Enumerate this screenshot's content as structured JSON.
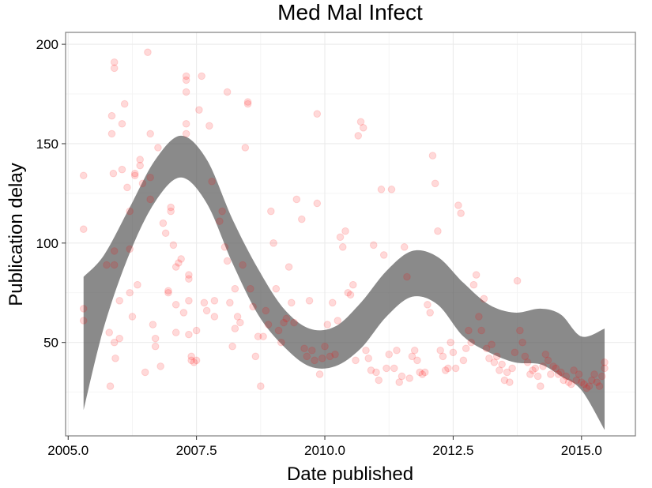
{
  "chart_data": {
    "type": "scatter",
    "title": "Med Mal Infect",
    "xlabel": "Date published",
    "ylabel": "Publication delay",
    "xlim": [
      2004.95,
      2016.05
    ],
    "ylim": [
      3,
      206
    ],
    "x_ticks": [
      {
        "value": 2005.0,
        "label": "2005.0"
      },
      {
        "value": 2007.5,
        "label": "2007.5"
      },
      {
        "value": 2010.0,
        "label": "2010.0"
      },
      {
        "value": 2012.5,
        "label": "2012.5"
      },
      {
        "value": 2015.0,
        "label": "2015.0"
      }
    ],
    "y_ticks": [
      {
        "value": 50,
        "label": "50"
      },
      {
        "value": 100,
        "label": "100"
      },
      {
        "value": 150,
        "label": "150"
      },
      {
        "value": 200,
        "label": "200"
      }
    ],
    "grid": true,
    "legend": "none",
    "point_color": "#ff0000",
    "point_opacity": 0.15,
    "band_color": "#595959",
    "band_opacity": 0.7,
    "points": [
      [
        2005.3,
        134
      ],
      [
        2005.3,
        107
      ],
      [
        2005.3,
        67
      ],
      [
        2005.3,
        61
      ],
      [
        2005.75,
        89
      ],
      [
        2005.8,
        55
      ],
      [
        2005.82,
        28
      ],
      [
        2005.85,
        164
      ],
      [
        2005.85,
        155
      ],
      [
        2005.88,
        135
      ],
      [
        2005.9,
        191
      ],
      [
        2005.9,
        188
      ],
      [
        2005.9,
        96
      ],
      [
        2005.9,
        89
      ],
      [
        2005.9,
        50
      ],
      [
        2005.92,
        42
      ],
      [
        2006.0,
        71
      ],
      [
        2006.0,
        52
      ],
      [
        2006.05,
        160
      ],
      [
        2006.05,
        137
      ],
      [
        2006.1,
        170
      ],
      [
        2006.15,
        128
      ],
      [
        2006.2,
        116
      ],
      [
        2006.2,
        97
      ],
      [
        2006.2,
        75
      ],
      [
        2006.25,
        63
      ],
      [
        2006.3,
        135
      ],
      [
        2006.3,
        134
      ],
      [
        2006.35,
        79
      ],
      [
        2006.4,
        142
      ],
      [
        2006.4,
        139
      ],
      [
        2006.45,
        130
      ],
      [
        2006.5,
        35
      ],
      [
        2006.55,
        196
      ],
      [
        2006.6,
        155
      ],
      [
        2006.6,
        133
      ],
      [
        2006.6,
        122
      ],
      [
        2006.65,
        59
      ],
      [
        2006.7,
        52
      ],
      [
        2006.7,
        48
      ],
      [
        2006.75,
        148
      ],
      [
        2006.8,
        38
      ],
      [
        2006.85,
        110
      ],
      [
        2006.9,
        105
      ],
      [
        2006.95,
        76
      ],
      [
        2006.95,
        75
      ],
      [
        2007.0,
        118
      ],
      [
        2007.0,
        116
      ],
      [
        2007.05,
        99
      ],
      [
        2007.1,
        88
      ],
      [
        2007.1,
        69
      ],
      [
        2007.1,
        55
      ],
      [
        2007.15,
        90
      ],
      [
        2007.2,
        92
      ],
      [
        2007.25,
        65
      ],
      [
        2007.3,
        184
      ],
      [
        2007.3,
        182
      ],
      [
        2007.3,
        176
      ],
      [
        2007.3,
        160
      ],
      [
        2007.3,
        155
      ],
      [
        2007.35,
        84
      ],
      [
        2007.35,
        82
      ],
      [
        2007.35,
        71
      ],
      [
        2007.35,
        54
      ],
      [
        2007.4,
        43
      ],
      [
        2007.4,
        41
      ],
      [
        2007.45,
        40
      ],
      [
        2007.5,
        56
      ],
      [
        2007.5,
        41
      ],
      [
        2007.55,
        167
      ],
      [
        2007.6,
        184
      ],
      [
        2007.65,
        70
      ],
      [
        2007.7,
        66
      ],
      [
        2007.75,
        159
      ],
      [
        2007.8,
        131
      ],
      [
        2007.85,
        71
      ],
      [
        2007.85,
        63
      ],
      [
        2007.95,
        111
      ],
      [
        2008.0,
        116
      ],
      [
        2008.05,
        98
      ],
      [
        2008.1,
        91
      ],
      [
        2008.1,
        176
      ],
      [
        2008.15,
        70
      ],
      [
        2008.2,
        48
      ],
      [
        2008.25,
        77
      ],
      [
        2008.25,
        57
      ],
      [
        2008.3,
        63
      ],
      [
        2008.35,
        60
      ],
      [
        2008.4,
        89
      ],
      [
        2008.45,
        148
      ],
      [
        2008.5,
        171
      ],
      [
        2008.5,
        170
      ],
      [
        2008.55,
        77
      ],
      [
        2008.6,
        68
      ],
      [
        2008.65,
        43
      ],
      [
        2008.7,
        53
      ],
      [
        2008.75,
        28
      ],
      [
        2008.8,
        53
      ],
      [
        2008.85,
        66
      ],
      [
        2008.9,
        59
      ],
      [
        2008.95,
        116
      ],
      [
        2009.0,
        100
      ],
      [
        2009.05,
        77
      ],
      [
        2009.1,
        56
      ],
      [
        2009.15,
        50
      ],
      [
        2009.2,
        60
      ],
      [
        2009.25,
        62
      ],
      [
        2009.3,
        88
      ],
      [
        2009.35,
        70
      ],
      [
        2009.4,
        60
      ],
      [
        2009.45,
        122
      ],
      [
        2009.55,
        112
      ],
      [
        2009.6,
        47
      ],
      [
        2009.65,
        43
      ],
      [
        2009.7,
        71
      ],
      [
        2009.75,
        46
      ],
      [
        2009.8,
        41
      ],
      [
        2009.85,
        165
      ],
      [
        2009.85,
        120
      ],
      [
        2009.9,
        34
      ],
      [
        2009.95,
        42
      ],
      [
        2010.0,
        48
      ],
      [
        2010.05,
        59
      ],
      [
        2010.1,
        43
      ],
      [
        2010.15,
        70
      ],
      [
        2010.2,
        44
      ],
      [
        2010.25,
        61
      ],
      [
        2010.3,
        103
      ],
      [
        2010.35,
        98
      ],
      [
        2010.4,
        106
      ],
      [
        2010.45,
        75
      ],
      [
        2010.5,
        74
      ],
      [
        2010.55,
        79
      ],
      [
        2010.6,
        41
      ],
      [
        2010.65,
        154
      ],
      [
        2010.7,
        161
      ],
      [
        2010.75,
        158
      ],
      [
        2010.8,
        46
      ],
      [
        2010.85,
        42
      ],
      [
        2010.9,
        36
      ],
      [
        2010.95,
        99
      ],
      [
        2011.0,
        35
      ],
      [
        2011.05,
        31
      ],
      [
        2011.1,
        127
      ],
      [
        2011.15,
        94
      ],
      [
        2011.2,
        37
      ],
      [
        2011.25,
        44
      ],
      [
        2011.3,
        127
      ],
      [
        2011.35,
        37
      ],
      [
        2011.4,
        46
      ],
      [
        2011.45,
        30
      ],
      [
        2011.5,
        33
      ],
      [
        2011.55,
        98
      ],
      [
        2011.6,
        83
      ],
      [
        2011.65,
        32
      ],
      [
        2011.7,
        43
      ],
      [
        2011.75,
        46
      ],
      [
        2011.8,
        41
      ],
      [
        2011.85,
        35
      ],
      [
        2011.9,
        34
      ],
      [
        2011.95,
        35
      ],
      [
        2012.0,
        69
      ],
      [
        2012.05,
        65
      ],
      [
        2012.1,
        144
      ],
      [
        2012.15,
        130
      ],
      [
        2012.2,
        106
      ],
      [
        2012.25,
        46
      ],
      [
        2012.3,
        43
      ],
      [
        2012.35,
        36
      ],
      [
        2012.4,
        37
      ],
      [
        2012.45,
        50
      ],
      [
        2012.5,
        45
      ],
      [
        2012.55,
        37
      ],
      [
        2012.6,
        119
      ],
      [
        2012.65,
        115
      ],
      [
        2012.7,
        41
      ],
      [
        2012.75,
        47
      ],
      [
        2012.8,
        56
      ],
      [
        2012.85,
        50
      ],
      [
        2012.9,
        79
      ],
      [
        2012.95,
        84
      ],
      [
        2013.0,
        63
      ],
      [
        2013.05,
        56
      ],
      [
        2013.1,
        72
      ],
      [
        2013.15,
        47
      ],
      [
        2013.2,
        42
      ],
      [
        2013.25,
        49
      ],
      [
        2013.3,
        40
      ],
      [
        2013.35,
        43
      ],
      [
        2013.4,
        36
      ],
      [
        2013.45,
        39
      ],
      [
        2013.5,
        31
      ],
      [
        2013.55,
        35
      ],
      [
        2013.6,
        30
      ],
      [
        2013.65,
        37
      ],
      [
        2013.7,
        45
      ],
      [
        2013.75,
        81
      ],
      [
        2013.8,
        56
      ],
      [
        2013.85,
        50
      ],
      [
        2013.9,
        43
      ],
      [
        2013.95,
        40
      ],
      [
        2014.0,
        34
      ],
      [
        2014.05,
        36
      ],
      [
        2014.1,
        37
      ],
      [
        2014.15,
        33
      ],
      [
        2014.2,
        28
      ],
      [
        2014.25,
        38
      ],
      [
        2014.3,
        44
      ],
      [
        2014.35,
        41
      ],
      [
        2014.4,
        34
      ],
      [
        2014.45,
        38
      ],
      [
        2014.5,
        37
      ],
      [
        2014.55,
        34
      ],
      [
        2014.6,
        35
      ],
      [
        2014.65,
        31
      ],
      [
        2014.7,
        33
      ],
      [
        2014.75,
        30
      ],
      [
        2014.8,
        29
      ],
      [
        2014.85,
        36
      ],
      [
        2014.9,
        31
      ],
      [
        2014.95,
        34
      ],
      [
        2015.0,
        30
      ],
      [
        2015.05,
        29
      ],
      [
        2015.1,
        27
      ],
      [
        2015.15,
        28
      ],
      [
        2015.2,
        31
      ],
      [
        2015.25,
        34
      ],
      [
        2015.3,
        30
      ],
      [
        2015.35,
        28
      ],
      [
        2015.4,
        33
      ],
      [
        2015.45,
        37
      ],
      [
        2015.45,
        40
      ]
    ],
    "band": {
      "x": [
        2005.3,
        2005.7,
        2006.2,
        2006.7,
        2007.2,
        2007.7,
        2008.2,
        2008.7,
        2009.2,
        2009.7,
        2010.2,
        2010.7,
        2011.2,
        2011.7,
        2012.2,
        2012.7,
        2013.2,
        2013.7,
        2014.2,
        2014.6,
        2015.0,
        2015.45
      ],
      "upper": [
        83,
        94,
        118,
        142,
        154,
        142,
        112,
        87,
        67,
        57,
        58,
        70,
        86,
        96,
        93,
        80,
        69,
        65,
        67,
        64,
        53,
        57
      ],
      "lower": [
        16,
        58,
        95,
        121,
        133,
        120,
        90,
        64,
        48,
        38,
        38,
        47,
        63,
        73,
        69,
        53,
        45,
        40,
        39,
        33,
        26,
        6
      ]
    }
  }
}
